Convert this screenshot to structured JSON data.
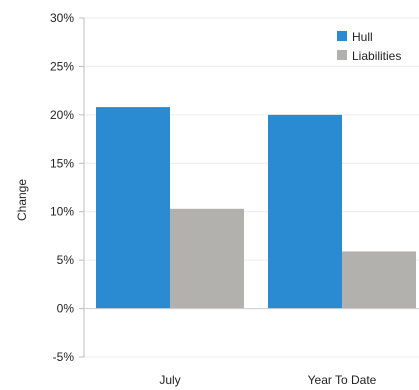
{
  "chart_data": {
    "type": "bar",
    "title": "",
    "xlabel": "",
    "ylabel": "Change",
    "categories": [
      "July",
      "Year To Date"
    ],
    "series": [
      {
        "name": "Hull",
        "values": [
          20.8,
          20.0
        ],
        "color": "#2a8ad2"
      },
      {
        "name": "Liabilities",
        "values": [
          10.3,
          5.9
        ],
        "color": "#b3b1ae"
      }
    ],
    "ylim": [
      -5,
      30
    ],
    "y_ticks": [
      30,
      25,
      20,
      15,
      10,
      5,
      0,
      -5
    ],
    "y_tick_labels": [
      "30%",
      "25%",
      "20%",
      "15%",
      "10%",
      "5%",
      "0%",
      "-5%"
    ],
    "legend_position": "top-right",
    "grid": true
  }
}
